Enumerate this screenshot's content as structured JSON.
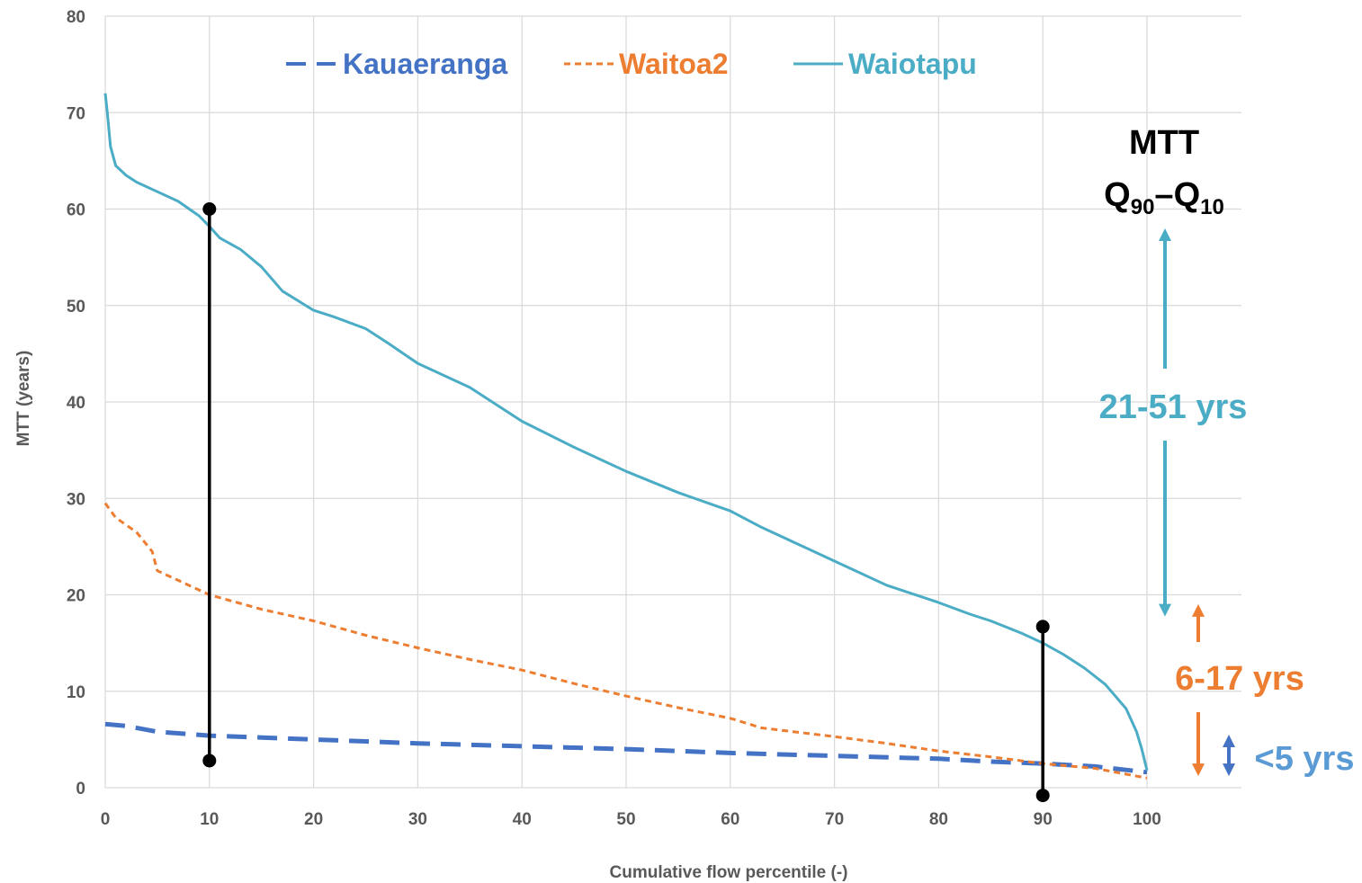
{
  "chart_data": {
    "type": "line",
    "xlabel": "Cumulative flow percentile (-)",
    "ylabel": "MTT (years)",
    "xlim": [
      0,
      100
    ],
    "ylim": [
      0,
      80
    ],
    "xticks": [
      0,
      10,
      20,
      30,
      40,
      50,
      60,
      70,
      80,
      90,
      100
    ],
    "yticks": [
      0,
      10,
      20,
      30,
      40,
      50,
      60,
      70,
      80
    ],
    "grid": true,
    "legend_position": "top",
    "series": [
      {
        "name": "Kauaeranga",
        "color": "#4472c4",
        "style": "dashed",
        "x": [
          0,
          2,
          5,
          10,
          15,
          20,
          30,
          40,
          50,
          60,
          70,
          80,
          85,
          90,
          95,
          100
        ],
        "y": [
          6.6,
          6.4,
          5.8,
          5.4,
          5.2,
          5.0,
          4.6,
          4.3,
          4.0,
          3.6,
          3.3,
          3.0,
          2.7,
          2.5,
          2.2,
          1.6
        ]
      },
      {
        "name": "Waitoa2",
        "color": "#ed7d31",
        "style": "dotted",
        "x": [
          0,
          1,
          3,
          4.5,
          5,
          7,
          10,
          15,
          20,
          25,
          30,
          35,
          40,
          45,
          50,
          55,
          60,
          63,
          70,
          75,
          80,
          85,
          90,
          95,
          100
        ],
        "y": [
          29.5,
          28,
          26.5,
          24.5,
          22.5,
          21.5,
          20,
          18.5,
          17.3,
          15.8,
          14.5,
          13.3,
          12.2,
          10.8,
          9.5,
          8.3,
          7.2,
          6.2,
          5.3,
          4.6,
          3.8,
          3.2,
          2.5,
          2.0,
          1.0
        ]
      },
      {
        "name": "Waiotapu",
        "color": "#4bacc6",
        "style": "solid",
        "x": [
          0,
          0.2,
          0.5,
          1,
          2,
          3,
          5,
          7,
          9,
          10,
          11,
          13,
          15,
          17,
          20,
          22,
          25,
          27,
          30,
          35,
          40,
          45,
          50,
          55,
          60,
          63,
          67,
          70,
          75,
          80,
          83,
          85,
          88,
          90,
          92,
          94,
          96,
          98,
          99,
          99.5,
          100
        ],
        "y": [
          72,
          70,
          66.5,
          64.5,
          63.5,
          62.8,
          61.8,
          60.8,
          59.3,
          58.2,
          57,
          55.8,
          54,
          51.5,
          49.5,
          48.8,
          47.6,
          46.2,
          44,
          41.5,
          38,
          35.3,
          32.8,
          30.6,
          28.7,
          27,
          25,
          23.5,
          21,
          19.2,
          18,
          17.3,
          16,
          15,
          13.8,
          12.4,
          10.7,
          8.2,
          5.8,
          4.0,
          1.8
        ]
      }
    ],
    "markers": [
      {
        "x": 10,
        "y_top": 60,
        "y_bottom": 2.8
      },
      {
        "x": 90,
        "y_top": 16.7,
        "y_bottom": -0.8
      }
    ],
    "annotations": {
      "heading": "MTT",
      "q_letter": "Q",
      "q_sub_high": "90",
      "dash": "–",
      "q_sub_low": "10",
      "ranges": [
        {
          "label": "21-51 yrs",
          "color": "#4bacc6",
          "from": 17,
          "to": 58
        },
        {
          "label": "6-17 yrs",
          "color": "#ed7d31",
          "from": 1.2,
          "to": 19.5
        },
        {
          "label": "<5 yrs",
          "color": "#4472c4",
          "from": 1.2,
          "to": 5.5
        }
      ]
    }
  }
}
